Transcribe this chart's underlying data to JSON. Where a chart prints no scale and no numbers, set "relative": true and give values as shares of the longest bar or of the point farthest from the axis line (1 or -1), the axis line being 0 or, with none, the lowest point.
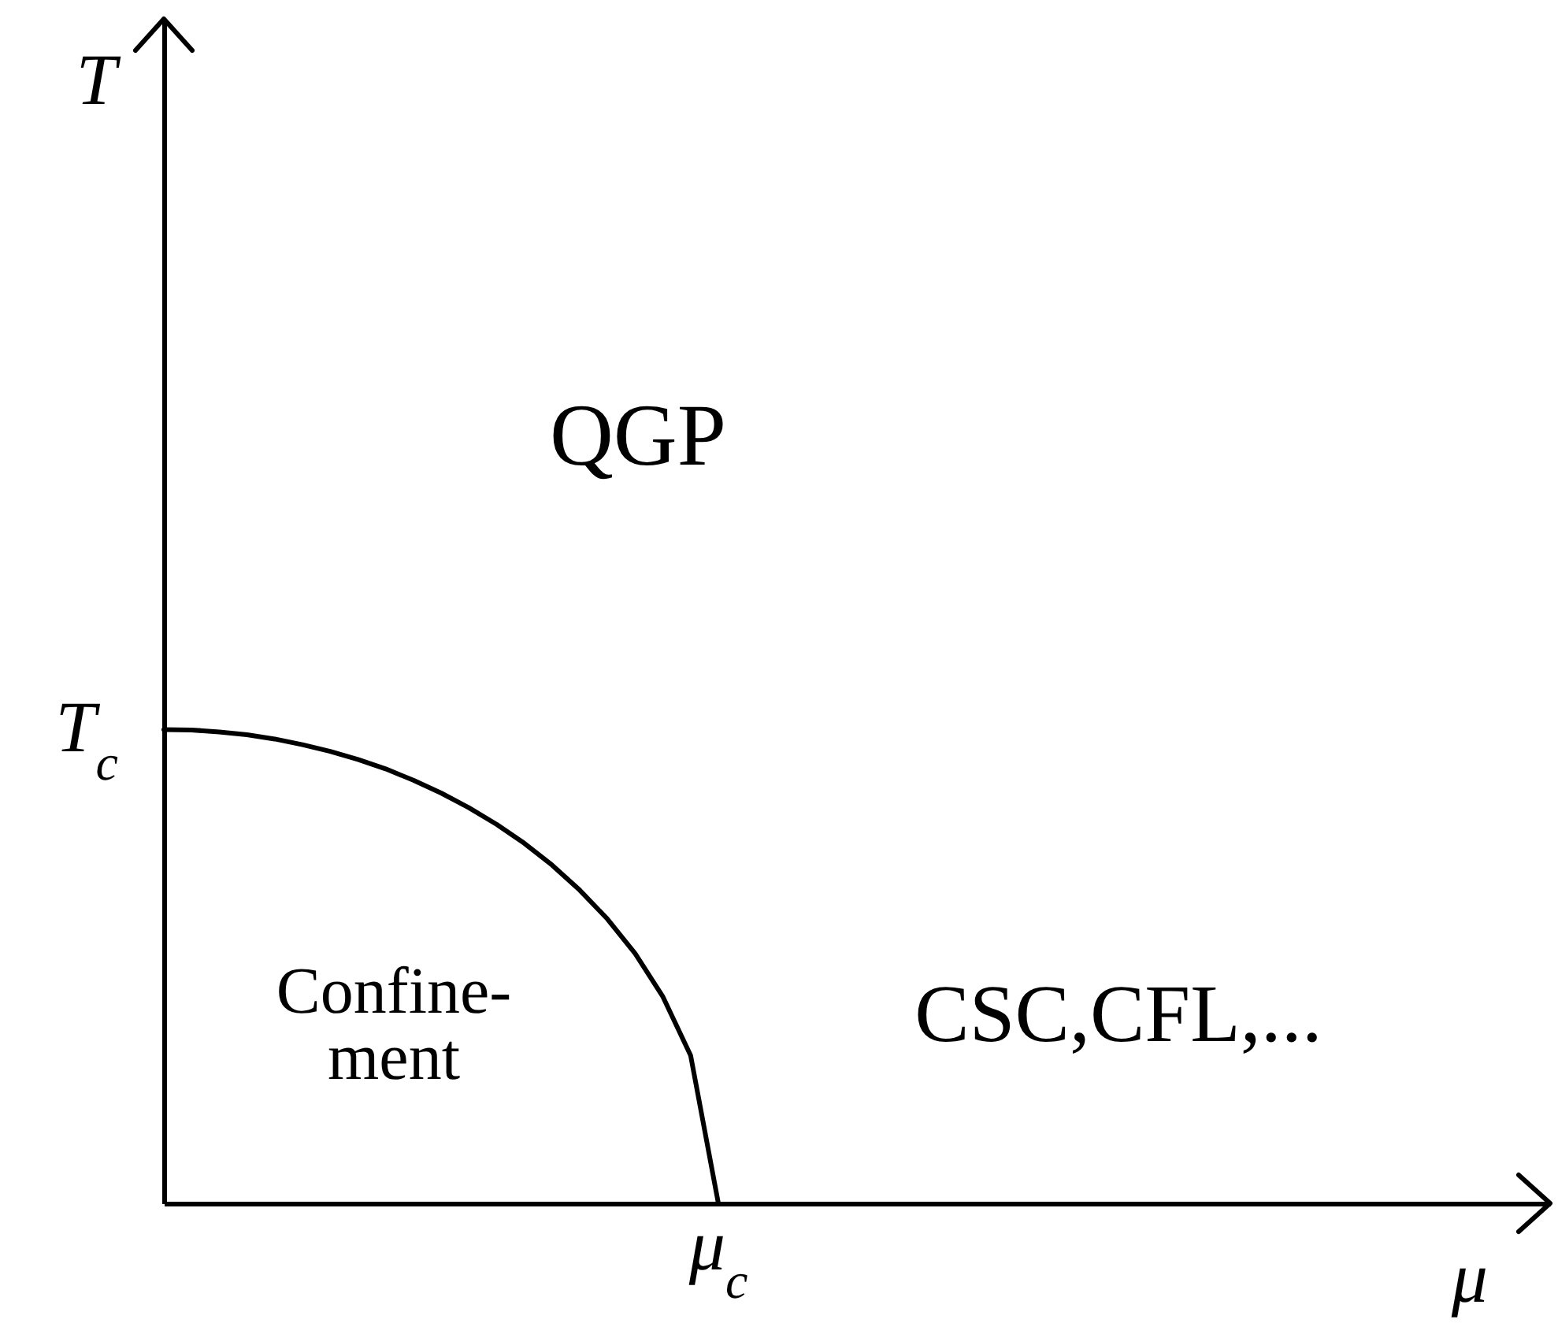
{
  "chart_data": {
    "type": "line",
    "xlabel": "μ",
    "relative": true,
    "categories": [
      null,
      null,
      null,
      null,
      null,
      null,
      null,
      null,
      null,
      null,
      null,
      null,
      null,
      null,
      null,
      null,
      null,
      null,
      null,
      null,
      null,
      null,
      null,
      null,
      null,
      null,
      null,
      null,
      null,
      null,
      null,
      null,
      null,
      null,
      null,
      null,
      null,
      null,
      null,
      null,
      null,
      null,
      null,
      null,
      null,
      null,
      null,
      null,
      null,
      null,
      null
    ],
    "series": [
      {
        "color": "#000000",
        "values": [
          1,
          0.999,
          0.995,
          0.989,
          0.98,
          0.968,
          0.954,
          0.937,
          0.917,
          0.893,
          0.866,
          0.835,
          0.8,
          0.76,
          0.714,
          0.661,
          0.6,
          0.527,
          0.436,
          0.312,
          0,
          null,
          null,
          null,
          null,
          null,
          null,
          null,
          null,
          null,
          null,
          null,
          null,
          null,
          null,
          null,
          null,
          null,
          null,
          null,
          null,
          null,
          null,
          null,
          null,
          null,
          null,
          null,
          null,
          null,
          null
        ]
      }
    ],
    "annotations": [
      "T",
      "T$_{c}$",
      "μ$_{c}$",
      "QGP",
      "Confine-\nment",
      "CSC,CFL,..."
    ],
    "marker": "none",
    "line_style": "solid"
  }
}
